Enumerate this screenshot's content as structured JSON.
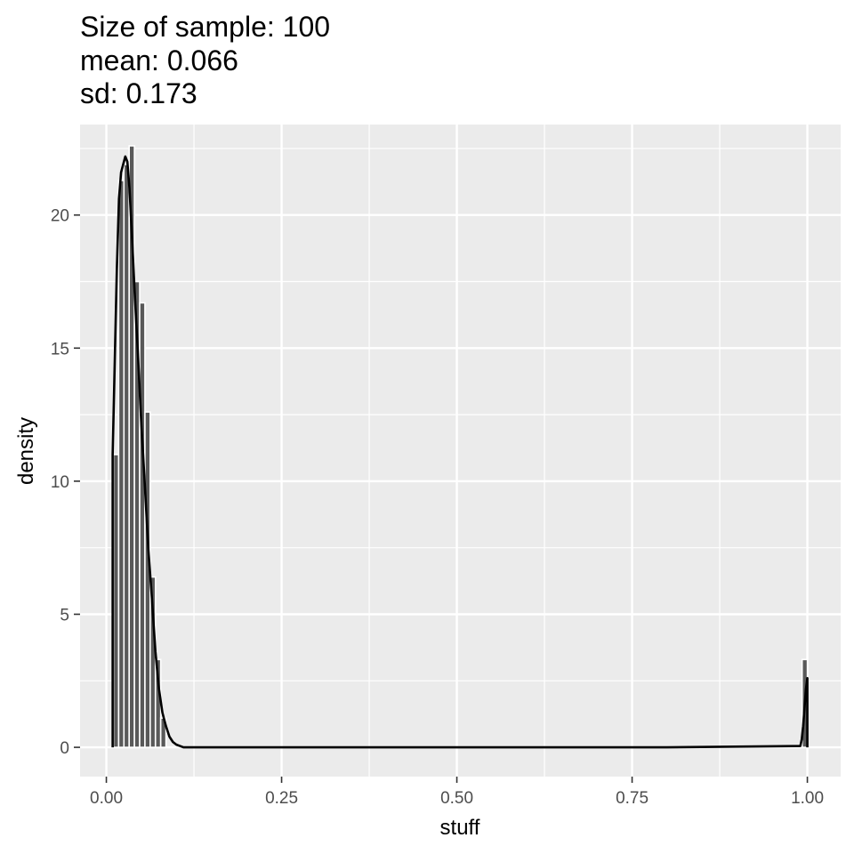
{
  "chart_data": {
    "type": "bar",
    "title_lines": [
      "Size of sample: 100",
      "mean: 0.066",
      "sd: 0.173"
    ],
    "xlabel": "stuff",
    "ylabel": "density",
    "xlim": [
      -0.0375,
      1.0475
    ],
    "ylim": [
      -1.1,
      23.4
    ],
    "x_ticks": [
      0.0,
      0.25,
      0.5,
      0.75,
      1.0
    ],
    "x_tick_labels": [
      "0.00",
      "0.25",
      "0.50",
      "0.75",
      "1.00"
    ],
    "y_ticks": [
      0,
      5,
      10,
      15,
      20
    ],
    "y_tick_labels": [
      "0",
      "5",
      "10",
      "15",
      "20"
    ],
    "grid": true,
    "histogram": {
      "bin_width": 0.0075,
      "bins": [
        {
          "x": 0.0138,
          "value": 11.0
        },
        {
          "x": 0.0213,
          "value": 21.3
        },
        {
          "x": 0.0288,
          "value": 21.9
        },
        {
          "x": 0.0363,
          "value": 22.6
        },
        {
          "x": 0.0438,
          "value": 17.5
        },
        {
          "x": 0.0513,
          "value": 16.7
        },
        {
          "x": 0.0588,
          "value": 12.6
        },
        {
          "x": 0.0663,
          "value": 6.4
        },
        {
          "x": 0.0738,
          "value": 3.3
        },
        {
          "x": 0.0813,
          "value": 1.1
        },
        {
          "x": 0.9963,
          "value": 3.3
        }
      ]
    },
    "density_curve": {
      "x": [
        0.009,
        0.012,
        0.015,
        0.018,
        0.021,
        0.024,
        0.027,
        0.03,
        0.033,
        0.036,
        0.04,
        0.045,
        0.05,
        0.055,
        0.06,
        0.065,
        0.07,
        0.075,
        0.08,
        0.085,
        0.09,
        0.095,
        0.1,
        0.105,
        0.11,
        0.2,
        0.4,
        0.6,
        0.8,
        0.99,
        0.992,
        0.994,
        0.996,
        0.998,
        1.0
      ],
      "y": [
        11.0,
        14.5,
        18.0,
        20.6,
        21.6,
        21.9,
        22.2,
        22.0,
        21.0,
        19.5,
        17.3,
        14.8,
        12.1,
        9.8,
        7.4,
        5.6,
        3.6,
        2.2,
        1.3,
        0.8,
        0.4,
        0.2,
        0.1,
        0.05,
        0.0,
        0.0,
        0.0,
        0.0,
        0.0,
        0.05,
        0.3,
        0.8,
        1.5,
        2.2,
        2.6
      ]
    }
  }
}
